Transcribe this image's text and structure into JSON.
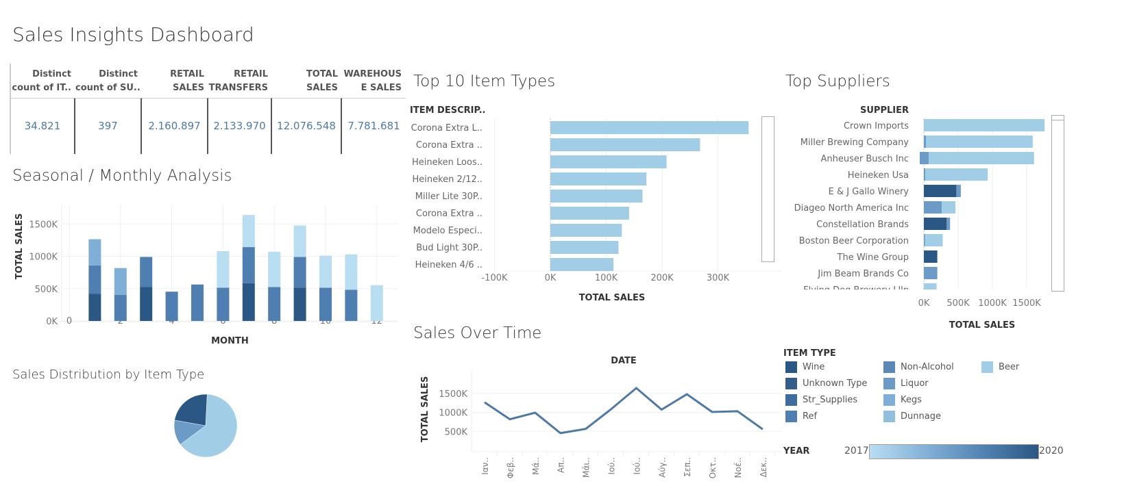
{
  "dashboard_title": "Sales Insights Dashboard",
  "kpis": [
    {
      "header1": "Distinct",
      "header2": "count of IT..",
      "value": "34.821"
    },
    {
      "header1": "Distinct",
      "header2": "count of SU..",
      "value": "397"
    },
    {
      "header1": "RETAIL",
      "header2": "SALES",
      "value": "2.160.897"
    },
    {
      "header1": "RETAIL",
      "header2": "TRANSFERS",
      "value": "2.133.970"
    },
    {
      "header1": "TOTAL",
      "header2": "SALES",
      "value": "12.076.548"
    },
    {
      "header1": "WAREHOUS",
      "header2": "E SALES",
      "value": "7.781.681"
    }
  ],
  "colors": {
    "Wine": "#2a5783",
    "Unknown Type": "#345d8a",
    "Str_Supplies": "#3e6c9e",
    "Ref": "#4e7fb0",
    "Non-Alcohol": "#5b88b5",
    "Liquor": "#6b9bc6",
    "Kegs": "#7fafd6",
    "Dunnage": "#91bfdc",
    "Beer": "#a2cde6",
    "BeerLight": "#b9ddf1",
    "line": "#4e79a7"
  },
  "chart_data": [
    {
      "id": "seasonal",
      "type": "bar",
      "stacked": true,
      "title": "Seasonal / Monthly Analysis",
      "xlabel": "MONTH",
      "ylabel": "TOTAL SALES",
      "xlim": [
        0,
        12.5
      ],
      "xticks": [
        "0",
        "2",
        "4",
        "6",
        "8",
        "10",
        "12"
      ],
      "ylim": [
        -60,
        1700
      ],
      "yticks": [
        "0K",
        "500K",
        "1000K",
        "1500K"
      ],
      "grid": true,
      "categories": [
        1,
        2,
        3,
        4,
        5,
        6,
        7,
        8,
        9,
        10,
        11,
        12
      ],
      "segments": [
        [
          {
            "type": "Wine",
            "value": 422
          },
          {
            "type": "Ref",
            "value": 436
          },
          {
            "type": "Kegs",
            "value": 406
          }
        ],
        [
          {
            "type": "Ref",
            "value": 402
          },
          {
            "type": "Kegs",
            "value": 416
          }
        ],
        [
          {
            "type": "Wine",
            "value": 524
          },
          {
            "type": "Ref",
            "value": 466
          }
        ],
        [
          {
            "type": "Ref",
            "value": 453
          }
        ],
        [
          {
            "type": "Ref",
            "value": 564
          }
        ],
        [
          {
            "type": "Ref",
            "value": 514
          },
          {
            "type": "BeerLight",
            "value": 567
          }
        ],
        [
          {
            "type": "Wine",
            "value": 584
          },
          {
            "type": "Ref",
            "value": 558
          },
          {
            "type": "BeerLight",
            "value": 497
          }
        ],
        [
          {
            "type": "Ref",
            "value": 524
          },
          {
            "type": "BeerLight",
            "value": 547
          }
        ],
        [
          {
            "type": "Wine",
            "value": 514
          },
          {
            "type": "Ref",
            "value": 476
          },
          {
            "type": "BeerLight",
            "value": 486
          }
        ],
        [
          {
            "type": "Ref",
            "value": 514
          },
          {
            "type": "BeerLight",
            "value": 496
          }
        ],
        [
          {
            "type": "Ref",
            "value": 483
          },
          {
            "type": "BeerLight",
            "value": 547
          }
        ],
        [
          {
            "type": "BeerLight",
            "value": 554
          }
        ]
      ]
    },
    {
      "id": "pie",
      "type": "pie",
      "title": "Sales Distribution by Item Type",
      "slices": [
        {
          "type": "Beer",
          "value": 64
        },
        {
          "type": "Liquor",
          "value": 13
        },
        {
          "type": "Wine",
          "value": 23
        }
      ]
    },
    {
      "id": "top10",
      "type": "bar",
      "orientation": "horizontal",
      "title": "Top 10 Item Types",
      "ylabel": "ITEM DESCRIP..",
      "xlabel": "TOTAL SALES",
      "xticks": [
        "-100K",
        "0K",
        "100K",
        "200K",
        "300K"
      ],
      "xlim": [
        -100,
        360
      ],
      "categories": [
        "Corona Extra L..",
        "Corona Extra ..",
        "Heineken Loos..",
        "Heineken 2/12..",
        "Miller Lite 30P..",
        "Corona Extra ..",
        "Modelo Especi..",
        "Bud Light 30P..",
        "Heineken 4/6 .."
      ],
      "values": [
        355,
        268,
        208,
        172,
        165,
        141,
        128,
        122,
        113
      ],
      "color_type": "Beer"
    },
    {
      "id": "suppliers",
      "type": "bar",
      "orientation": "horizontal",
      "stacked": true,
      "title": "Top Suppliers",
      "ylabel": "SUPPLIER",
      "xlabel": "TOTAL SALES",
      "xticks": [
        "0K",
        "500K",
        "1000K",
        "1500K"
      ],
      "xlim": [
        -100,
        1800
      ],
      "categories": [
        "Crown Imports",
        "Miller Brewing Company",
        "Anheuser Busch Inc",
        "Heineken Usa",
        "E & J Gallo Winery",
        "Diageo North America Inc",
        "Constellation Brands",
        "Boston Beer Corporation",
        "The Wine Group",
        "Jim Beam Brands Co",
        "Flying Dog Brewery Lllp"
      ],
      "segments": [
        [
          {
            "type": "Beer",
            "value": 1760
          }
        ],
        [
          {
            "type": "Liquor",
            "value": 30
          },
          {
            "type": "Beer",
            "value": 1558
          }
        ],
        [
          {
            "type": "Liquor",
            "value": -60
          },
          {
            "type": "Liquor",
            "value": 70
          },
          {
            "type": "Beer",
            "value": 1538
          }
        ],
        [
          {
            "type": "Liquor",
            "value": 20
          },
          {
            "type": "Beer",
            "value": 911
          }
        ],
        [
          {
            "type": "Wine",
            "value": 474
          },
          {
            "type": "Liquor",
            "value": 65
          }
        ],
        [
          {
            "type": "Liquor",
            "value": 261
          },
          {
            "type": "Beer",
            "value": 200
          }
        ],
        [
          {
            "type": "Wine",
            "value": 333
          },
          {
            "type": "Liquor",
            "value": 49
          }
        ],
        [
          {
            "type": "Liquor",
            "value": 16
          },
          {
            "type": "Beer",
            "value": 259
          }
        ],
        [
          {
            "type": "Wine",
            "value": 196
          }
        ],
        [
          {
            "type": "Liquor",
            "value": 196
          }
        ],
        [
          {
            "type": "Beer",
            "value": 186
          }
        ]
      ]
    },
    {
      "id": "overtime",
      "type": "line",
      "title": "Sales Over Time",
      "header": "DATE",
      "ylabel": "TOTAL SALES",
      "yticks": [
        "500K",
        "1000K",
        "1500K"
      ],
      "ylim": [
        0,
        1700
      ],
      "categories": [
        "Ιαν..",
        "Φεβ..",
        "Μά..",
        "Απ..",
        "Μάι..",
        "Ιού..",
        "Ιού..",
        "Αύγ..",
        "Σεπ..",
        "Οκτ..",
        "Νοέ..",
        "Δεκ.."
      ],
      "values": [
        1264,
        818,
        990,
        453,
        564,
        1081,
        1639,
        1071,
        1476,
        1010,
        1030,
        554
      ]
    }
  ],
  "legend": {
    "title": "ITEM TYPE",
    "items": [
      "Wine",
      "Unknown Type",
      "Str_Supplies",
      "Ref",
      "Non-Alcohol",
      "Liquor",
      "Kegs",
      "Dunnage",
      "Beer"
    ],
    "year_title": "YEAR",
    "year_min": "2017",
    "year_max": "2020"
  }
}
